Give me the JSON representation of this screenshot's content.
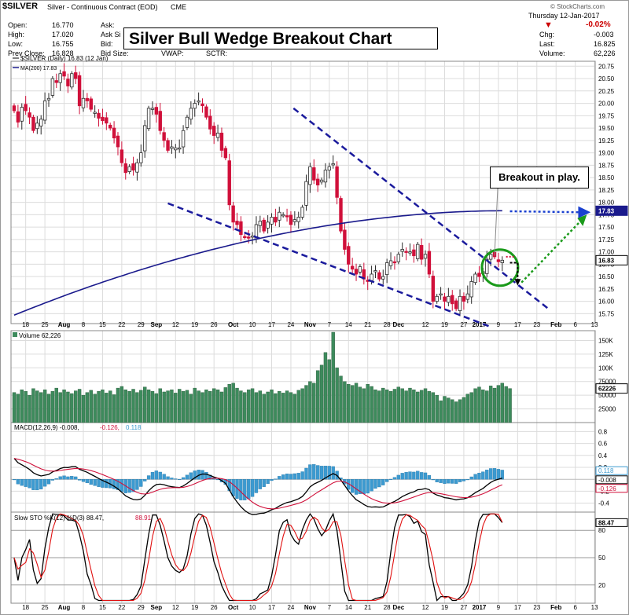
{
  "header": {
    "symbol": "$SILVER",
    "description": "Silver - Continuous Contract (EOD)",
    "exchange": "CME",
    "watermark": "© StockCharts.com",
    "date": "Thursday 12-Jan-2017",
    "change_pct": "-0.02%",
    "stats_left": [
      {
        "label": "Open:",
        "value": "16.770"
      },
      {
        "label": "High:",
        "value": "17.020"
      },
      {
        "label": "Low:",
        "value": "16.755"
      },
      {
        "label": "Prev Close:",
        "value": "16.828"
      }
    ],
    "stats_mid": [
      "Ask:",
      "Ask Si",
      "Bid:",
      "Bid Size:"
    ],
    "stats_mid2": [
      "VWAP:",
      "SCTR:"
    ],
    "stats_right": [
      {
        "label": "Chg:",
        "value": "-0.003"
      },
      {
        "label": "Last:",
        "value": "16.825"
      },
      {
        "label": "Volume:",
        "value": "62,226"
      }
    ]
  },
  "title": "Silver Bull Wedge Breakout Chart",
  "annotation": "Breakout in play.",
  "colors": {
    "up": "#2a2a2a",
    "down": "#d0103a",
    "ma": "#1a1a8c",
    "wedge": "#1a1a9c",
    "circle": "#1a9a1a",
    "volume": "#3d8a5c",
    "macd_hist": "#3c9ad0",
    "stoch_k": "#000000",
    "stoch_d": "#e01010",
    "grid": "#dcdcdc"
  },
  "chart_data": [
    {
      "type": "candlestick",
      "panel": "price",
      "legend": [
        "$SILVER (Daily) 16.83 (12 Jan)",
        "MA(200) 17.83"
      ],
      "yticks": [
        15.75,
        16.0,
        16.25,
        16.5,
        16.75,
        17.0,
        17.25,
        17.5,
        17.75,
        18.0,
        18.25,
        18.5,
        18.75,
        19.0,
        19.25,
        19.5,
        19.75,
        20.0,
        20.25,
        20.5,
        20.75
      ],
      "ylim": [
        15.55,
        20.85
      ],
      "last_label": "16.83",
      "ma_label": "17.83",
      "close": [
        19.85,
        19.62,
        19.92,
        19.85,
        19.72,
        19.45,
        19.6,
        19.68,
        20.05,
        20.1,
        20.5,
        20.42,
        20.6,
        20.55,
        20.35,
        20.6,
        20.5,
        19.95,
        20.1,
        20.05,
        19.88,
        19.82,
        19.7,
        19.65,
        19.6,
        19.5,
        19.3,
        19.12,
        18.8,
        18.6,
        18.72,
        18.65,
        18.8,
        19.0,
        19.55,
        19.9,
        19.9,
        19.78,
        19.45,
        19.25,
        19.05,
        19.12,
        19.1,
        19.1,
        19.45,
        19.72,
        19.9,
        20.0,
        20.05,
        19.95,
        19.72,
        19.48,
        19.35,
        19.4,
        19.05,
        18.9,
        17.95,
        17.6,
        17.55,
        17.35,
        17.3,
        17.28,
        17.32,
        17.55,
        17.62,
        17.42,
        17.6,
        17.7,
        17.6,
        17.8,
        17.75,
        17.72,
        17.55,
        17.65,
        17.7,
        17.9,
        18.42,
        18.72,
        18.45,
        18.35,
        18.45,
        18.65,
        18.72,
        18.78,
        18.1,
        17.42,
        17.05,
        16.75,
        16.65,
        16.55,
        16.7,
        16.45,
        16.4,
        16.55,
        16.62,
        16.45,
        16.5,
        16.78,
        16.82,
        16.78,
        16.95,
        17.05,
        17.0,
        17.0,
        16.92,
        17.15,
        16.85,
        16.95,
        16.55,
        16.0,
        16.1,
        16.15,
        16.0,
        16.1,
        15.95,
        15.85,
        16.1,
        16.0,
        16.15,
        16.4,
        16.55,
        16.5,
        16.6,
        16.85,
        16.95,
        16.9,
        16.8,
        16.83
      ]
    },
    {
      "type": "bar",
      "panel": "volume",
      "legend": "Volume 62,226",
      "yticks": [
        "150K",
        "125K",
        "100K",
        "75000",
        "50000",
        "25000"
      ],
      "last_label": "62226",
      "ylim": [
        0,
        165000
      ],
      "values": [
        55000,
        52000,
        60000,
        57000,
        50000,
        62000,
        58000,
        55000,
        60000,
        52000,
        57000,
        63000,
        55000,
        60000,
        56000,
        53000,
        58000,
        61000,
        50000,
        55000,
        59000,
        52000,
        57000,
        60000,
        54000,
        58000,
        51000,
        63000,
        66000,
        60000,
        57000,
        61000,
        55000,
        59000,
        65000,
        60000,
        57000,
        53000,
        62000,
        56000,
        58000,
        60000,
        54000,
        61000,
        57000,
        59000,
        52000,
        63000,
        58000,
        55000,
        60000,
        57000,
        62000,
        60000,
        56000,
        64000,
        70000,
        72000,
        63000,
        58000,
        55000,
        60000,
        62000,
        55000,
        58000,
        52000,
        56000,
        60000,
        53000,
        57000,
        54000,
        58000,
        55000,
        52000,
        59000,
        62000,
        68000,
        75000,
        72000,
        95000,
        105000,
        128000,
        115000,
        165000,
        100000,
        85000,
        75000,
        70000,
        68000,
        72000,
        65000,
        62000,
        70000,
        66000,
        60000,
        58000,
        63000,
        60000,
        57000,
        61000,
        65000,
        62000,
        58000,
        63000,
        60000,
        56000,
        59000,
        62000,
        57000,
        55000,
        50000,
        40000,
        48000,
        45000,
        42000,
        38000,
        42000,
        46000,
        52000,
        55000,
        62000,
        65000,
        60000,
        58000,
        67000,
        63000,
        68000,
        72000,
        66000,
        62226
      ]
    },
    {
      "type": "line",
      "panel": "macd",
      "legend": [
        "MACD(12,26,9) -0.008,",
        "-0.126,",
        "0.118"
      ],
      "yticks": [
        0.8,
        0.6,
        0.4,
        0.2,
        -0.2,
        -0.4
      ],
      "last_labels": [
        "0.118",
        "-0.008",
        "-0.126"
      ],
      "ylim": [
        -0.55,
        0.95
      ]
    },
    {
      "type": "line",
      "panel": "stochastic",
      "legend": [
        "Slow STO %K(12) %D(3) 88.47,",
        "88.91"
      ],
      "yticks": [
        80,
        50,
        20
      ],
      "last_label": "88.47",
      "ylim": [
        0,
        100
      ]
    }
  ],
  "x_axis": {
    "labels": [
      {
        "t": "18",
        "i": 3
      },
      {
        "t": "25",
        "i": 8
      },
      {
        "t": "Aug",
        "i": 13,
        "bold": true
      },
      {
        "t": "8",
        "i": 18
      },
      {
        "t": "15",
        "i": 23
      },
      {
        "t": "22",
        "i": 28
      },
      {
        "t": "29",
        "i": 33
      },
      {
        "t": "Sep",
        "i": 37,
        "bold": true
      },
      {
        "t": "12",
        "i": 42
      },
      {
        "t": "19",
        "i": 47
      },
      {
        "t": "26",
        "i": 52
      },
      {
        "t": "Oct",
        "i": 57,
        "bold": true
      },
      {
        "t": "10",
        "i": 62
      },
      {
        "t": "17",
        "i": 67
      },
      {
        "t": "24",
        "i": 72
      },
      {
        "t": "Nov",
        "i": 77,
        "bold": true
      },
      {
        "t": "7",
        "i": 82
      },
      {
        "t": "14",
        "i": 87
      },
      {
        "t": "21",
        "i": 92
      },
      {
        "t": "28",
        "i": 97
      },
      {
        "t": "Dec",
        "i": 100,
        "bold": true
      },
      {
        "t": "12",
        "i": 107
      },
      {
        "t": "19",
        "i": 112
      },
      {
        "t": "27",
        "i": 117
      },
      {
        "t": "2017",
        "i": 121,
        "bold": true
      },
      {
        "t": "9",
        "i": 126
      },
      {
        "t": "17",
        "i": 131
      },
      {
        "t": "23",
        "i": 136
      },
      {
        "t": "Feb",
        "i": 141,
        "bold": true
      },
      {
        "t": "6",
        "i": 146
      },
      {
        "t": "13",
        "i": 151
      }
    ]
  }
}
